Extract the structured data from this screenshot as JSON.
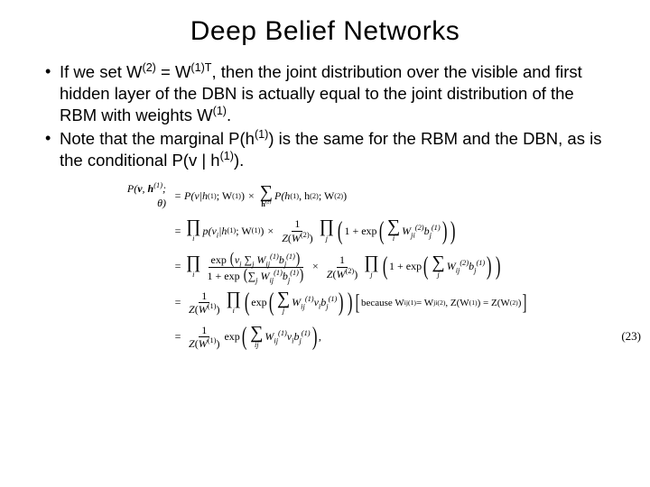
{
  "slide": {
    "title": "Deep Belief Networks",
    "title_fontsize": 30,
    "title_color": "#000000",
    "bullets": [
      {
        "pre": "If we set W",
        "sup1": "(2)",
        "mid1": " = W",
        "sup2": "(1)T",
        "mid2": ", then the joint distribution over the visible and first hidden layer of the DBN is actually equal to the joint distribution of the RBM with weights W",
        "sup3": "(1)",
        "post": "."
      },
      {
        "pre": "Note that the marginal P(h",
        "sup1": "(1)",
        "mid1": ") is the same for the RBM and the DBN, as is the conditional P(v | h",
        "sup2": "(1)",
        "post": ")."
      }
    ],
    "bullet_fontsize": 18.5,
    "bullet_color": "#000000",
    "background_color": "#ffffff",
    "equations": {
      "font_family": "Times New Roman",
      "base_fontsize": 12,
      "color": "#000000",
      "eq_number": "(23)",
      "line1_lhs": "P(v, h ; θ)",
      "line1_lhs_sup": "(1)",
      "eq1_part1_a": "P(v|h",
      "eq1_part1_sup": "(1)",
      "eq1_part1_b": "; W",
      "eq1_part1_sup2": "(1)",
      "eq1_part1_c": ")",
      "eq1_sum_sub": "h",
      "eq1_sum_sub_sup": "(2)",
      "eq1_part2_a": "P(h",
      "eq1_part2_sup1": "(1)",
      "eq1_part2_b": ", h",
      "eq1_part2_sup2": "(2)",
      "eq1_part2_c": "; W",
      "eq1_part2_sup3": "(2)",
      "eq1_part2_d": ")",
      "eq2_prod1_sub": "i",
      "eq2_p_a": "p(v",
      "eq2_p_sub": "i",
      "eq2_p_b": "|h",
      "eq2_p_sup": "(1)",
      "eq2_p_c": "; W",
      "eq2_p_sup2": "(1)",
      "eq2_p_d": ")",
      "eq2_Z_a": "Z(W",
      "eq2_Z_sup": "(2)",
      "eq2_Z_b": ")",
      "eq2_prod2_sub": "j",
      "eq2_oneplus": "1 + exp",
      "eq2_sum_sub": "i",
      "eq2_inner_a": "W",
      "eq2_inner_sub": "ji",
      "eq2_inner_sup": "(2)",
      "eq2_inner_b": "b",
      "eq2_inner_sub2": "j",
      "eq2_inner_sup2": "(1)",
      "eq3_num_a": "exp",
      "eq3_num_b": "v",
      "eq3_num_sub1": "i",
      "eq3_num_sum_sub": "j",
      "eq3_num_c": "W",
      "eq3_num_sub2": "ij",
      "eq3_num_sup1": "(1)",
      "eq3_num_d": "b",
      "eq3_num_sub3": "j",
      "eq3_num_sup2": "(1)",
      "eq3_den_a": "1 + exp",
      "eq3_den_sum_sub": "j",
      "eq3_den_b": "W",
      "eq3_den_sub": "ij",
      "eq3_den_sup": "(1)",
      "eq3_den_c": "b",
      "eq3_den_sub2": "j",
      "eq3_den_sup2": "(1)",
      "eq4_Z_a": "Z(W",
      "eq4_Z_sup": "(1)",
      "eq4_Z_b": ")",
      "eq4_prod_sub": "i",
      "eq4_exp": "exp",
      "eq4_sum_sub": "j",
      "eq4_a": "W",
      "eq4_sub": "ij",
      "eq4_sup": "(1)",
      "eq4_b": "v",
      "eq4_sub2": "i",
      "eq4_c": "b",
      "eq4_sub3": "j",
      "eq4_sup2": "(1)",
      "eq4_because": "because W",
      "eq4_bec_sub": "ij",
      "eq4_bec_sup": "(1)",
      "eq4_bec_eq": " = W",
      "eq4_bec_sub2": "ji",
      "eq4_bec_sup2": "(2)",
      "eq4_bec_z1": ", Z(W",
      "eq4_bec_z1_sup": "(1)",
      "eq4_bec_z2": ") = Z(W",
      "eq4_bec_z2_sup": "(2)",
      "eq4_bec_end": ")",
      "eq5_Z_a": "Z(W",
      "eq5_Z_sup": "(1)",
      "eq5_Z_b": ")",
      "eq5_exp": "exp",
      "eq5_sum_sub": "ij",
      "eq5_a": "W",
      "eq5_sub": "ij",
      "eq5_sup": "(1)",
      "eq5_b": "v",
      "eq5_sub2": "i",
      "eq5_c": "b",
      "eq5_sub3": "j",
      "eq5_sup2": "(1)",
      "eq5_end": ","
    }
  }
}
